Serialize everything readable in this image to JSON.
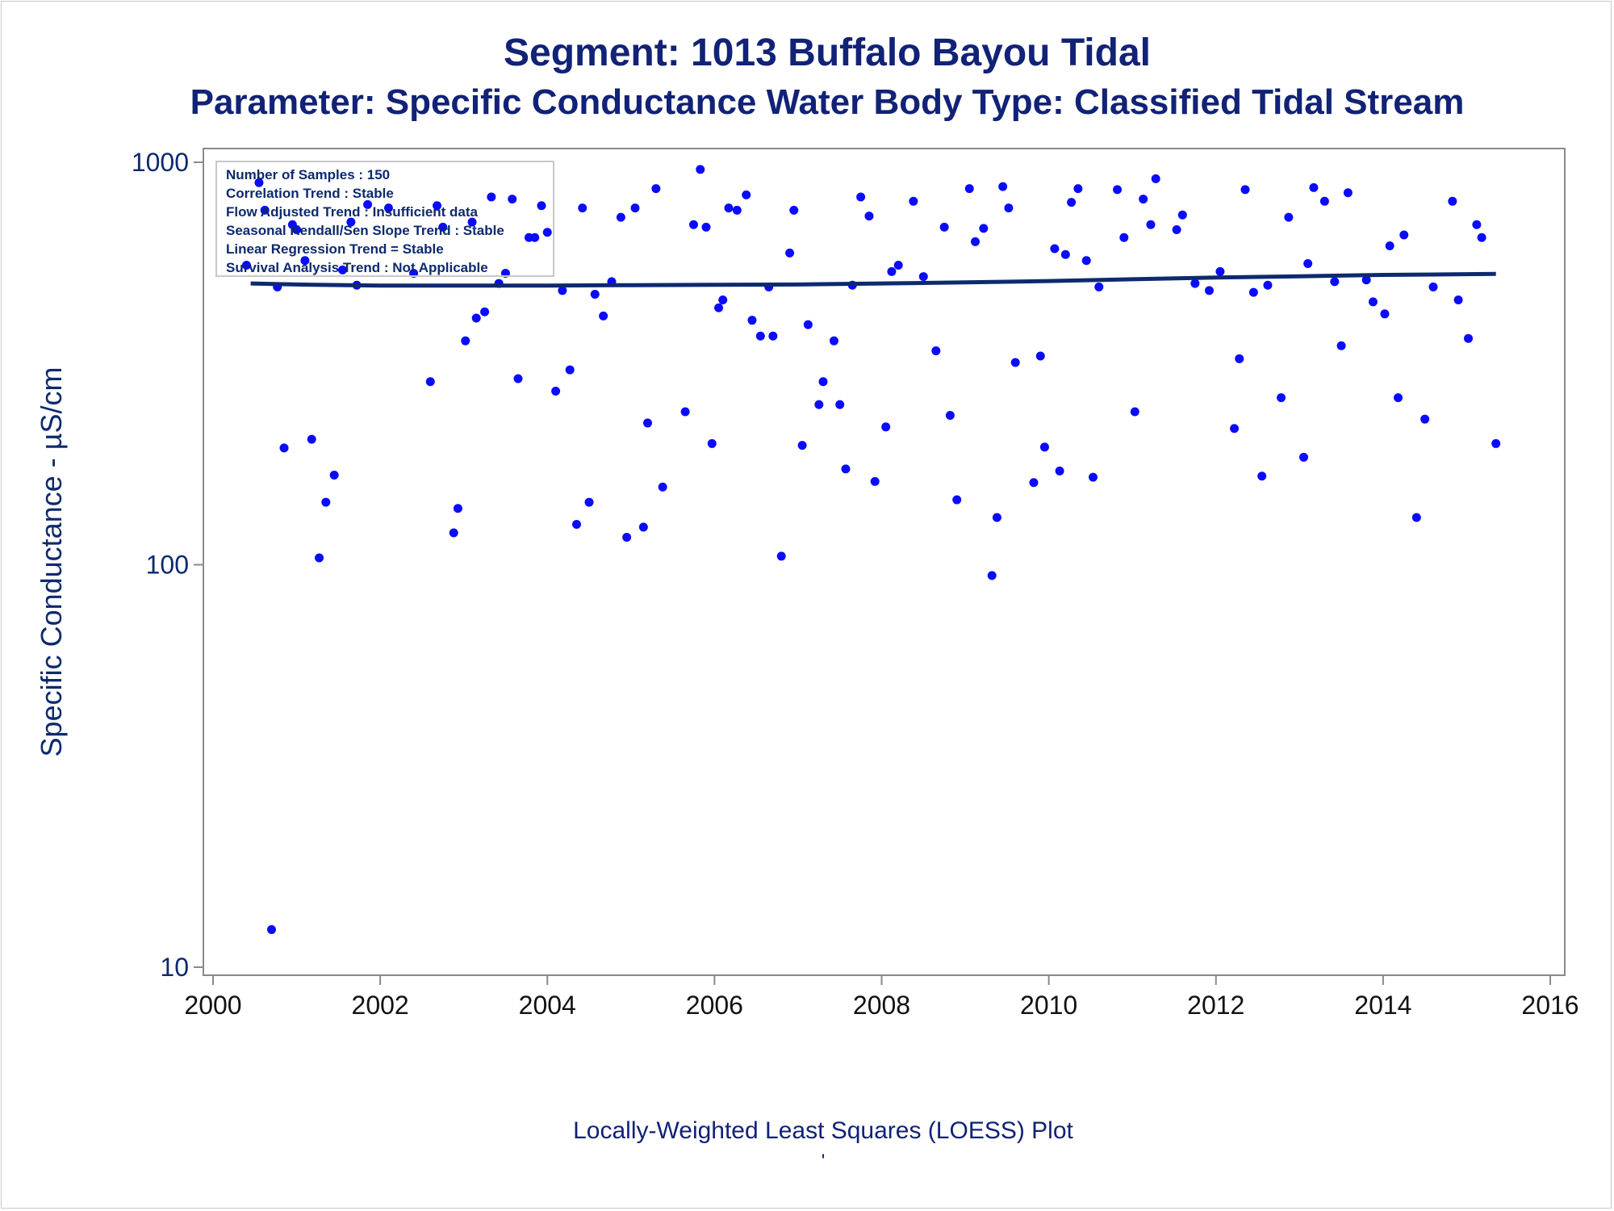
{
  "titles": {
    "line1": "Segment: 1013  Buffalo Bayou Tidal",
    "line2": "Parameter: Specific Conductance   Water Body Type: Classified Tidal Stream"
  },
  "footnotes": {
    "line1": "Locally-Weighted Least Squares (LOESS) Plot",
    "line2": "'"
  },
  "stats_box": [
    "Number of Samples : 150",
    "Correlation Trend : Stable",
    "Flow Adjusted Trend : Insufficient data",
    "Seasonal Kendall/Sen Slope Trend : Stable",
    "Linear Regression Trend = Stable",
    "Survival Analysis Trend : Not Applicable"
  ],
  "colors": {
    "title": "#112277",
    "points": "#0a0aff",
    "loess_line": "#0d2a6e",
    "axis": "#8a8a8a",
    "text": "#0d2a6e"
  },
  "chart_data": {
    "type": "scatter",
    "title": "Segment: 1013  Buffalo Bayou Tidal",
    "subtitle": "Parameter: Specific Conductance   Water Body Type: Classified Tidal Stream",
    "xlabel": "",
    "ylabel": "Specific Conductance -  µS/cm",
    "xlim": [
      2000,
      2016
    ],
    "ylim": [
      10,
      1000
    ],
    "yscale": "log",
    "xticks": [
      2000,
      2002,
      2004,
      2006,
      2008,
      2010,
      2012,
      2014,
      2016
    ],
    "yticks": [
      10,
      100,
      1000
    ],
    "grid": false,
    "points": [
      [
        2000.4,
        555
      ],
      [
        2000.55,
        890
      ],
      [
        2000.62,
        760
      ],
      [
        2000.7,
        12.4
      ],
      [
        2000.77,
        490
      ],
      [
        2000.85,
        195
      ],
      [
        2000.95,
        700
      ],
      [
        2001.0,
        680
      ],
      [
        2001.1,
        570
      ],
      [
        2001.18,
        205
      ],
      [
        2001.27,
        104
      ],
      [
        2001.35,
        143
      ],
      [
        2001.45,
        167
      ],
      [
        2001.55,
        540
      ],
      [
        2001.65,
        710
      ],
      [
        2001.72,
        495
      ],
      [
        2001.85,
        785
      ],
      [
        2002.1,
        770
      ],
      [
        2002.4,
        530
      ],
      [
        2002.6,
        285
      ],
      [
        2002.68,
        780
      ],
      [
        2002.75,
        690
      ],
      [
        2002.88,
        120
      ],
      [
        2002.93,
        138
      ],
      [
        2003.02,
        360
      ],
      [
        2003.1,
        710
      ],
      [
        2003.15,
        410
      ],
      [
        2003.25,
        425
      ],
      [
        2003.33,
        820
      ],
      [
        2003.42,
        500
      ],
      [
        2003.5,
        530
      ],
      [
        2003.58,
        810
      ],
      [
        2003.65,
        290
      ],
      [
        2003.78,
        650
      ],
      [
        2003.85,
        650
      ],
      [
        2003.93,
        780
      ],
      [
        2004.0,
        670
      ],
      [
        2004.1,
        270
      ],
      [
        2004.18,
        480
      ],
      [
        2004.27,
        305
      ],
      [
        2004.35,
        126
      ],
      [
        2004.42,
        770
      ],
      [
        2004.5,
        143
      ],
      [
        2004.57,
        470
      ],
      [
        2004.67,
        415
      ],
      [
        2004.77,
        505
      ],
      [
        2004.88,
        730
      ],
      [
        2004.95,
        117
      ],
      [
        2005.05,
        770
      ],
      [
        2005.15,
        124
      ],
      [
        2005.2,
        225
      ],
      [
        2005.3,
        860
      ],
      [
        2005.38,
        156
      ],
      [
        2005.65,
        240
      ],
      [
        2005.75,
        700
      ],
      [
        2005.83,
        960
      ],
      [
        2005.9,
        690
      ],
      [
        2005.97,
        200
      ],
      [
        2006.05,
        435
      ],
      [
        2006.1,
        455
      ],
      [
        2006.17,
        770
      ],
      [
        2006.27,
        760
      ],
      [
        2006.38,
        830
      ],
      [
        2006.45,
        405
      ],
      [
        2006.55,
        370
      ],
      [
        2006.65,
        490
      ],
      [
        2006.7,
        370
      ],
      [
        2006.8,
        105
      ],
      [
        2006.9,
        595
      ],
      [
        2006.95,
        760
      ],
      [
        2007.05,
        198
      ],
      [
        2007.12,
        395
      ],
      [
        2007.25,
        250
      ],
      [
        2007.3,
        285
      ],
      [
        2007.43,
        360
      ],
      [
        2007.5,
        250
      ],
      [
        2007.57,
        173
      ],
      [
        2007.65,
        495
      ],
      [
        2007.75,
        820
      ],
      [
        2007.85,
        735
      ],
      [
        2007.92,
        161
      ],
      [
        2008.05,
        220
      ],
      [
        2008.12,
        535
      ],
      [
        2008.2,
        555
      ],
      [
        2008.38,
        800
      ],
      [
        2008.5,
        520
      ],
      [
        2008.65,
        340
      ],
      [
        2008.75,
        690
      ],
      [
        2008.82,
        235
      ],
      [
        2008.9,
        145
      ],
      [
        2009.05,
        860
      ],
      [
        2009.12,
        635
      ],
      [
        2009.22,
        685
      ],
      [
        2009.32,
        94
      ],
      [
        2009.38,
        131
      ],
      [
        2009.45,
        870
      ],
      [
        2009.52,
        770
      ],
      [
        2009.6,
        318
      ],
      [
        2009.82,
        160
      ],
      [
        2009.9,
        330
      ],
      [
        2009.95,
        196
      ],
      [
        2010.07,
        610
      ],
      [
        2010.13,
        171
      ],
      [
        2010.2,
        590
      ],
      [
        2010.27,
        795
      ],
      [
        2010.35,
        860
      ],
      [
        2010.45,
        570
      ],
      [
        2010.53,
        165
      ],
      [
        2010.6,
        490
      ],
      [
        2010.82,
        855
      ],
      [
        2010.9,
        650
      ],
      [
        2011.03,
        240
      ],
      [
        2011.13,
        810
      ],
      [
        2011.22,
        700
      ],
      [
        2011.28,
        910
      ],
      [
        2011.53,
        680
      ],
      [
        2011.6,
        740
      ],
      [
        2011.75,
        500
      ],
      [
        2011.92,
        480
      ],
      [
        2012.05,
        535
      ],
      [
        2012.22,
        218
      ],
      [
        2012.28,
        325
      ],
      [
        2012.35,
        855
      ],
      [
        2012.45,
        475
      ],
      [
        2012.55,
        166
      ],
      [
        2012.62,
        495
      ],
      [
        2012.78,
        260
      ],
      [
        2012.87,
        730
      ],
      [
        2013.05,
        185
      ],
      [
        2013.1,
        560
      ],
      [
        2013.17,
        865
      ],
      [
        2013.3,
        800
      ],
      [
        2013.42,
        505
      ],
      [
        2013.5,
        350
      ],
      [
        2013.58,
        840
      ],
      [
        2013.8,
        510
      ],
      [
        2013.88,
        450
      ],
      [
        2014.02,
        420
      ],
      [
        2014.08,
        620
      ],
      [
        2014.18,
        260
      ],
      [
        2014.25,
        660
      ],
      [
        2014.4,
        131
      ],
      [
        2014.5,
        230
      ],
      [
        2014.6,
        490
      ],
      [
        2014.83,
        800
      ],
      [
        2014.9,
        455
      ],
      [
        2015.02,
        365
      ],
      [
        2015.12,
        700
      ],
      [
        2015.18,
        650
      ],
      [
        2015.35,
        200
      ]
    ],
    "loess": [
      [
        2000.45,
        500
      ],
      [
        2001.0,
        497
      ],
      [
        2002.0,
        494
      ],
      [
        2003.0,
        494
      ],
      [
        2004.0,
        494
      ],
      [
        2005.0,
        495
      ],
      [
        2006.0,
        496
      ],
      [
        2007.0,
        497
      ],
      [
        2008.0,
        500
      ],
      [
        2009.0,
        503
      ],
      [
        2010.0,
        507
      ],
      [
        2011.0,
        512
      ],
      [
        2012.0,
        517
      ],
      [
        2013.0,
        521
      ],
      [
        2014.0,
        525
      ],
      [
        2015.35,
        528
      ]
    ]
  }
}
